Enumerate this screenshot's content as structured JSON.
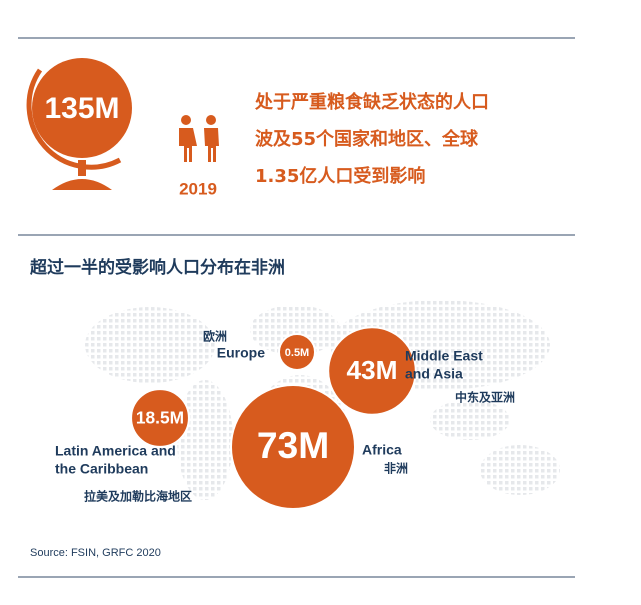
{
  "headline": {
    "figure": "135M",
    "year": "2019",
    "lines": [
      "处于严重粮食缺乏状态的人口",
      "波及55个国家和地区、全球",
      "1.35亿人口受到影响"
    ]
  },
  "subtitle": "超过一半的受影响人口分布在非洲",
  "regions": [
    {
      "name_en": [
        "Europe"
      ],
      "name_zh": "欧洲",
      "value": 0.5,
      "label": "0.5M"
    },
    {
      "name_en": [
        "Middle East",
        "and Asia"
      ],
      "name_zh": "中东及亚洲",
      "value": 43,
      "label": "43M"
    },
    {
      "name_en": [
        "Latin America and",
        "the Caribbean"
      ],
      "name_zh": "拉美及加勒比海地区",
      "value": 18.5,
      "label": "18.5M"
    },
    {
      "name_en": [
        "Africa"
      ],
      "name_zh": "非洲",
      "value": 73,
      "label": "73M"
    }
  ],
  "source": "Source: FSIN, GRFC 2020"
}
